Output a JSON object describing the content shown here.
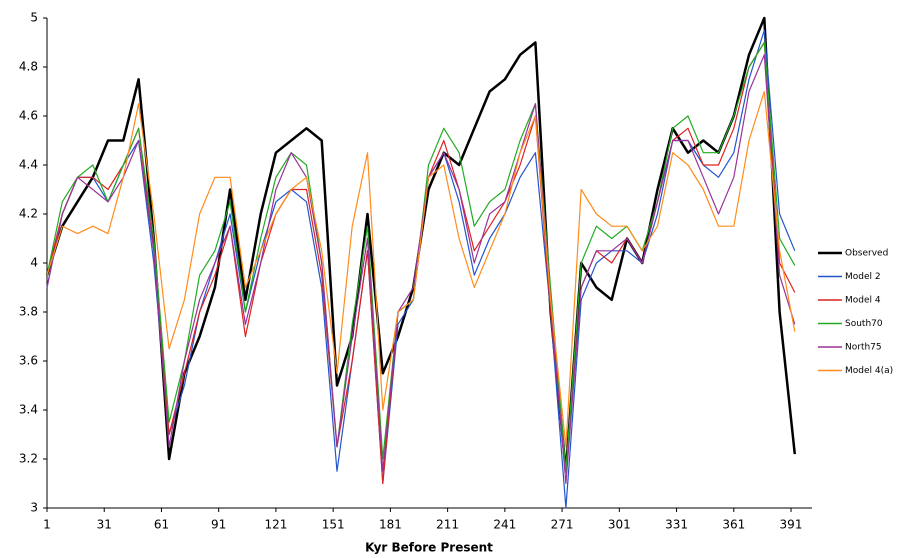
{
  "chart_data": {
    "type": "line",
    "x_label": "Kyr Before Present",
    "x": [
      1,
      9,
      17,
      25,
      33,
      41,
      49,
      57,
      65,
      73,
      81,
      89,
      97,
      105,
      113,
      121,
      129,
      137,
      145,
      153,
      161,
      169,
      177,
      185,
      193,
      201,
      209,
      217,
      225,
      233,
      241,
      249,
      257,
      265,
      273,
      281,
      289,
      297,
      305,
      313,
      321,
      329,
      337,
      345,
      353,
      361,
      369,
      377,
      385,
      393
    ],
    "xlim": [
      1,
      402
    ],
    "xticks": [
      1,
      31,
      61,
      91,
      121,
      151,
      181,
      211,
      241,
      271,
      301,
      331,
      361,
      391
    ],
    "ylim": [
      3,
      5
    ],
    "yticks": [
      3,
      3.2,
      3.4,
      3.6,
      3.8,
      4,
      4.2,
      4.4,
      4.6,
      4.8,
      5
    ],
    "grid": false,
    "legend": "right",
    "series": [
      {
        "name": "Observed",
        "color": "#000000",
        "values": [
          3.95,
          4.15,
          4.25,
          4.35,
          4.5,
          4.5,
          4.75,
          4.1,
          3.2,
          3.55,
          3.7,
          3.9,
          4.3,
          3.85,
          4.2,
          4.45,
          4.5,
          4.55,
          4.5,
          3.5,
          3.7,
          4.2,
          3.55,
          3.7,
          3.9,
          4.3,
          4.45,
          4.4,
          4.55,
          4.7,
          4.75,
          4.85,
          4.9,
          3.8,
          3.15,
          4.0,
          3.9,
          3.85,
          4.1,
          4.0,
          4.3,
          4.55,
          4.45,
          4.5,
          4.45,
          4.6,
          4.85,
          5.0,
          3.8,
          3.22
        ]
      },
      {
        "name": "Model 2",
        "color": "#2255cc",
        "values": [
          3.9,
          4.2,
          4.35,
          4.35,
          4.25,
          4.4,
          4.5,
          4.0,
          3.3,
          3.5,
          3.8,
          4.0,
          4.2,
          3.8,
          4.05,
          4.25,
          4.3,
          4.25,
          3.9,
          3.15,
          3.6,
          4.05,
          3.1,
          3.75,
          3.85,
          4.35,
          4.45,
          4.25,
          3.95,
          4.1,
          4.2,
          4.35,
          4.45,
          3.8,
          3.0,
          3.85,
          4.0,
          4.05,
          4.05,
          4.0,
          4.2,
          4.5,
          4.5,
          4.4,
          4.35,
          4.45,
          4.75,
          4.95,
          4.2,
          4.05
        ]
      },
      {
        "name": "Model 4",
        "color": "#dd2222",
        "values": [
          3.95,
          4.2,
          4.35,
          4.35,
          4.3,
          4.4,
          4.55,
          4.05,
          3.3,
          3.55,
          3.8,
          3.95,
          4.15,
          3.7,
          4.0,
          4.2,
          4.3,
          4.3,
          3.95,
          3.25,
          3.6,
          4.05,
          3.1,
          3.8,
          3.85,
          4.35,
          4.5,
          4.3,
          4.05,
          4.15,
          4.25,
          4.4,
          4.6,
          3.8,
          3.15,
          3.9,
          4.05,
          4.0,
          4.1,
          4.0,
          4.25,
          4.5,
          4.55,
          4.4,
          4.4,
          4.55,
          4.8,
          4.9,
          4.0,
          3.88
        ]
      },
      {
        "name": "South70",
        "color": "#22aa22",
        "values": [
          3.95,
          4.25,
          4.35,
          4.4,
          4.25,
          4.4,
          4.55,
          4.1,
          3.35,
          3.6,
          3.95,
          4.05,
          4.25,
          3.8,
          4.1,
          4.35,
          4.45,
          4.4,
          4.0,
          3.25,
          3.75,
          4.15,
          3.2,
          3.8,
          3.85,
          4.4,
          4.55,
          4.45,
          4.15,
          4.25,
          4.3,
          4.5,
          4.65,
          3.9,
          3.15,
          4.0,
          4.15,
          4.1,
          4.15,
          4.05,
          4.25,
          4.55,
          4.6,
          4.45,
          4.45,
          4.6,
          4.8,
          4.9,
          4.1,
          3.99
        ]
      },
      {
        "name": "North75",
        "color": "#993399",
        "values": [
          3.9,
          4.2,
          4.35,
          4.3,
          4.25,
          4.35,
          4.5,
          4.05,
          3.25,
          3.6,
          3.85,
          4.0,
          4.15,
          3.75,
          4.0,
          4.3,
          4.45,
          4.35,
          4.0,
          3.25,
          3.7,
          4.1,
          3.15,
          3.8,
          3.9,
          4.35,
          4.45,
          4.3,
          4.0,
          4.2,
          4.25,
          4.45,
          4.65,
          3.85,
          3.1,
          3.9,
          4.05,
          4.05,
          4.1,
          4.0,
          4.25,
          4.5,
          4.5,
          4.35,
          4.2,
          4.35,
          4.7,
          4.85,
          3.95,
          3.75
        ]
      },
      {
        "name": "Model 4(a)",
        "color": "#ff8c1a",
        "values": [
          3.95,
          4.15,
          4.12,
          4.15,
          4.12,
          4.35,
          4.65,
          4.2,
          3.65,
          3.85,
          4.2,
          4.35,
          4.35,
          3.9,
          4.05,
          4.2,
          4.3,
          4.35,
          4.05,
          3.55,
          4.15,
          4.45,
          3.4,
          3.8,
          3.85,
          4.35,
          4.4,
          4.1,
          3.9,
          4.05,
          4.2,
          4.45,
          4.6,
          3.85,
          3.25,
          4.3,
          4.2,
          4.15,
          4.15,
          4.05,
          4.15,
          4.45,
          4.4,
          4.3,
          4.15,
          4.15,
          4.5,
          4.7,
          4.05,
          3.72
        ]
      }
    ]
  }
}
